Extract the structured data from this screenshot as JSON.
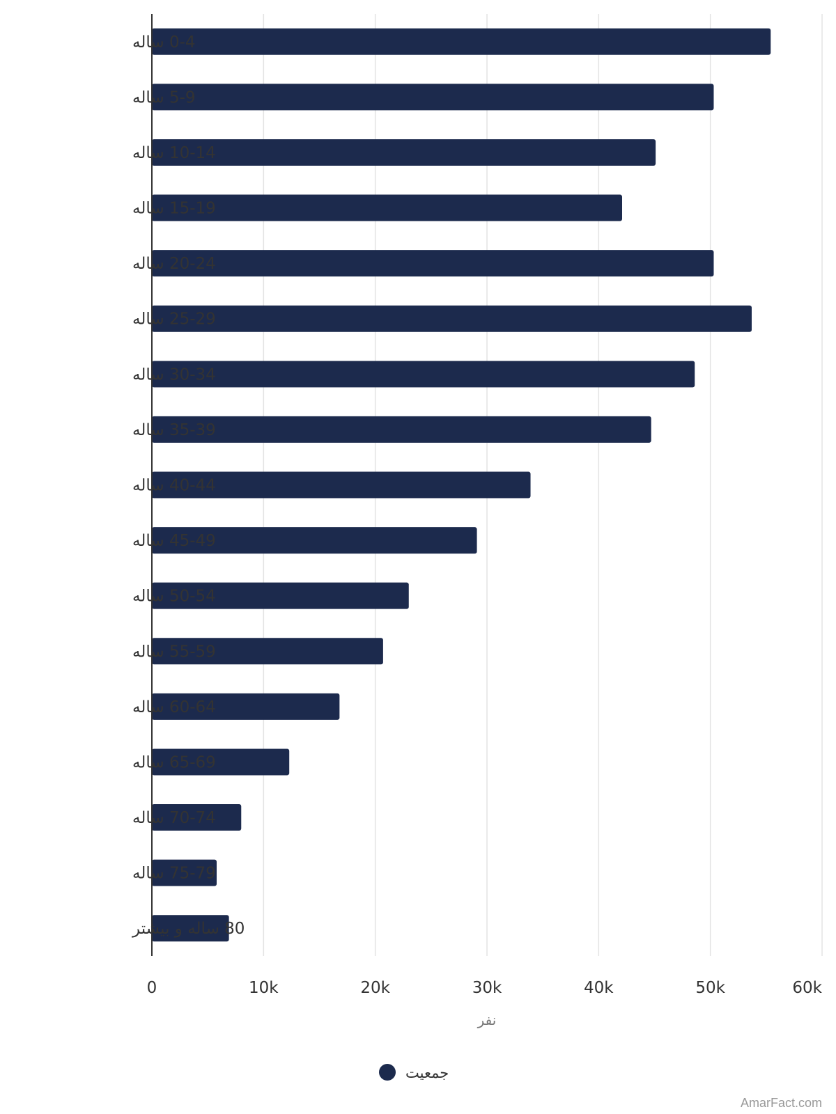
{
  "chart_data": {
    "type": "bar",
    "orientation": "horizontal",
    "categories": [
      "0-4 ساله",
      "5-9 ساله",
      "10-14 ساله",
      "15-19 ساله",
      "20-24 ساله",
      "25-29 ساله",
      "30-34 ساله",
      "35-39 ساله",
      "40-44 ساله",
      "45-49 ساله",
      "50-54 ساله",
      "55-59 ساله",
      "60-64 ساله",
      "65-69 ساله",
      "70-74 ساله",
      "75-79 ساله",
      "80 ساله و بیشتر"
    ],
    "series": [
      {
        "name": "جمعیت",
        "color": "#1c2a4d",
        "values": [
          55400,
          50300,
          45100,
          42100,
          50300,
          53700,
          48600,
          44700,
          33900,
          29100,
          23000,
          20700,
          16800,
          12300,
          8000,
          5800,
          6900
        ]
      }
    ],
    "xlim": [
      0,
      60000
    ],
    "xticks": [
      0,
      10000,
      20000,
      30000,
      40000,
      50000,
      60000
    ],
    "xtick_labels": [
      "0",
      "10k",
      "20k",
      "30k",
      "40k",
      "50k",
      "60k"
    ],
    "xlabel": "نفر",
    "ylabel": "",
    "title": "",
    "grid": true,
    "legend_position": "bottom-center"
  },
  "watermark": "AmarFact.com"
}
